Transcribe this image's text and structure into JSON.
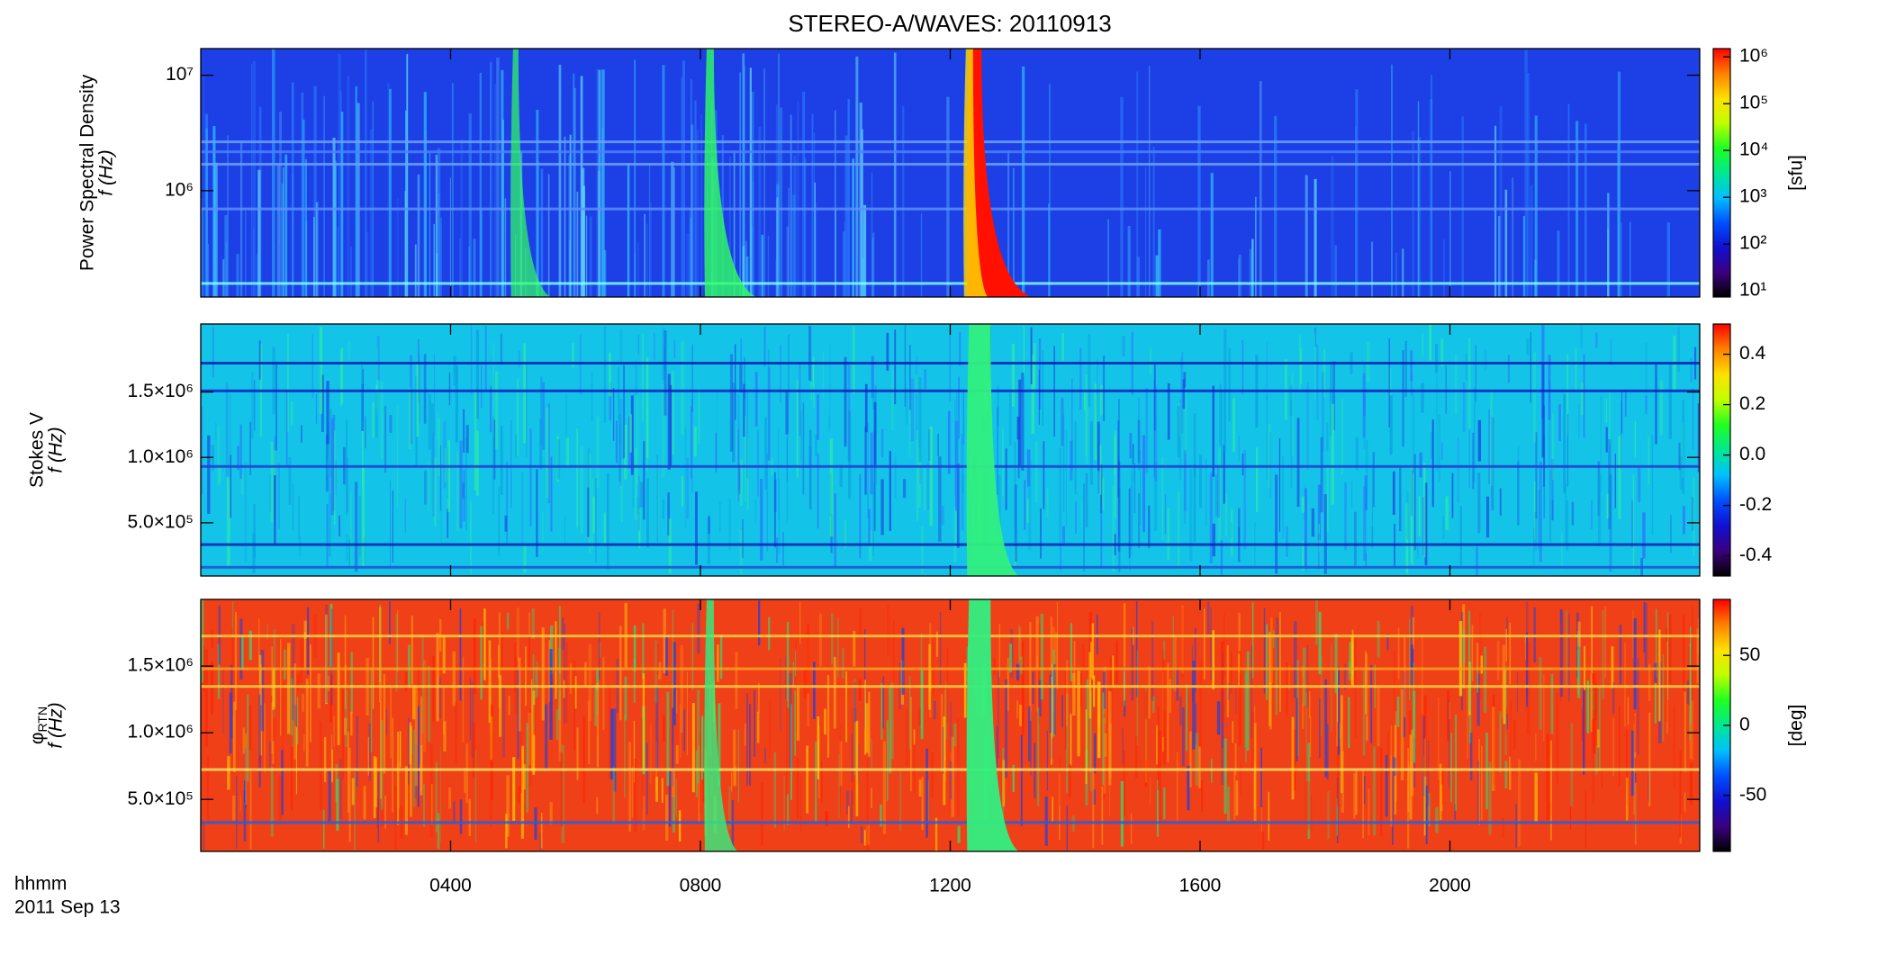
{
  "title": "STEREO-A/WAVES: 20110913",
  "x_label": "hhmm",
  "date_label": "2011 Sep 13",
  "chart_data": [
    {
      "type": "heatmap",
      "ylabel": "Power Spectral Density",
      "ylabel_unit": "f (Hz)",
      "ylog": true,
      "xlim": [
        0,
        24
      ],
      "xticks": [
        {
          "value": 4,
          "label": "0400"
        },
        {
          "value": 8,
          "label": "0800"
        },
        {
          "value": 12,
          "label": "1200"
        },
        {
          "value": 16,
          "label": "1600"
        },
        {
          "value": 20,
          "label": "2000"
        }
      ],
      "ylim": [
        120000,
        17000000
      ],
      "yticks": [
        {
          "value": 1000000,
          "label": "10⁶"
        },
        {
          "value": 10000000,
          "label": "10⁷"
        }
      ],
      "colormap": "rainbow",
      "zlog": true,
      "zlim": [
        7.4,
        1500000
      ],
      "zticks": [
        {
          "value": 10,
          "label": "10¹"
        },
        {
          "value": 100,
          "label": "10²"
        },
        {
          "value": 1000,
          "label": "10³"
        },
        {
          "value": 10000,
          "label": "10⁴"
        },
        {
          "value": 100000,
          "label": "10⁵"
        },
        {
          "value": 1000000,
          "label": "10⁶"
        }
      ],
      "zlabel": "[sfu]"
    },
    {
      "type": "heatmap",
      "ylabel": "Stokes V",
      "ylabel_unit": "f (Hz)",
      "ylog": false,
      "xlim": [
        0,
        24
      ],
      "xticks": [
        {
          "value": 4,
          "label": "0400"
        },
        {
          "value": 8,
          "label": "0800"
        },
        {
          "value": 12,
          "label": "1200"
        },
        {
          "value": 16,
          "label": "1600"
        },
        {
          "value": 20,
          "label": "2000"
        }
      ],
      "ylim": [
        93000,
        2020000
      ],
      "yticks": [
        {
          "value": 500000,
          "label": "5.0×10⁵"
        },
        {
          "value": 1000000,
          "label": "1.0×10⁶"
        },
        {
          "value": 1500000,
          "label": "1.5×10⁶"
        }
      ],
      "colormap": "rainbow",
      "zlog": false,
      "zlim": [
        -0.48,
        0.52
      ],
      "zticks": [
        -0.4,
        -0.2,
        {
          "value": 0,
          "label": "0.0"
        },
        0.2,
        0.4
      ]
    },
    {
      "type": "heatmap",
      "ylabel": "φ",
      "ylabel_subscript": "RTN",
      "ylabel_unit": "f (Hz)",
      "ylog": false,
      "xlim": [
        0,
        24
      ],
      "xticks": [
        {
          "value": 4,
          "label": "0400"
        },
        {
          "value": 8,
          "label": "0800"
        },
        {
          "value": 12,
          "label": "1200"
        },
        {
          "value": 16,
          "label": "1600"
        },
        {
          "value": 20,
          "label": "2000"
        }
      ],
      "ylim": [
        110000,
        2000000
      ],
      "yticks": [
        {
          "value": 500000,
          "label": "5.0×10⁵"
        },
        {
          "value": 1000000,
          "label": "1.0×10⁶"
        },
        {
          "value": 1500000,
          "label": "1.5×10⁶"
        }
      ],
      "colormap": "rainbow",
      "zlog": false,
      "zlim": [
        -90,
        90
      ],
      "zticks": [
        -50,
        0,
        50
      ],
      "zlabel": "[deg]"
    }
  ]
}
